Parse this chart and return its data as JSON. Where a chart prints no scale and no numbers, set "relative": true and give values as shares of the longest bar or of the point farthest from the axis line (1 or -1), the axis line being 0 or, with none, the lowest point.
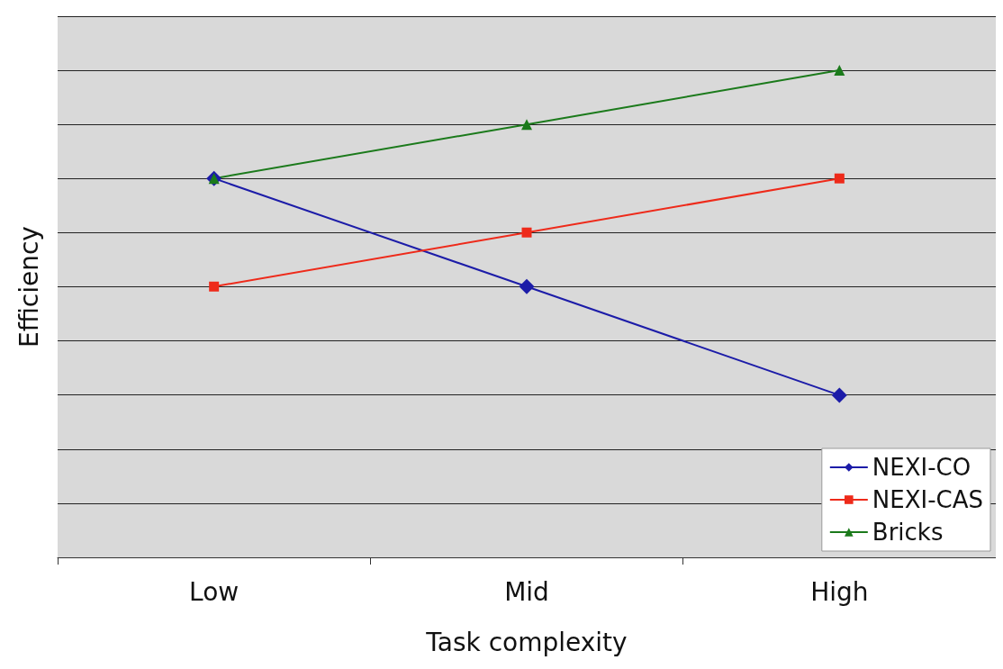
{
  "chart_data": {
    "type": "line",
    "xlabel": "Task complexity",
    "ylabel": "Efficiency",
    "relative": true,
    "grid": "y",
    "legend": "bottom right",
    "categories": [
      "Low",
      "Mid",
      "High"
    ],
    "series": [
      {
        "name": "NEXI-CO",
        "color": "#1c1ca8",
        "marker": "diamond",
        "values": [
          0.778,
          0.556,
          0.333
        ]
      },
      {
        "name": "NEXI-CAS",
        "color": "#ee2a1a",
        "marker": "square",
        "values": [
          0.556,
          0.667,
          0.778
        ]
      },
      {
        "name": "Bricks",
        "color": "#1b7a1b",
        "marker": "triangle",
        "values": [
          0.778,
          0.889,
          1
        ]
      }
    ]
  }
}
